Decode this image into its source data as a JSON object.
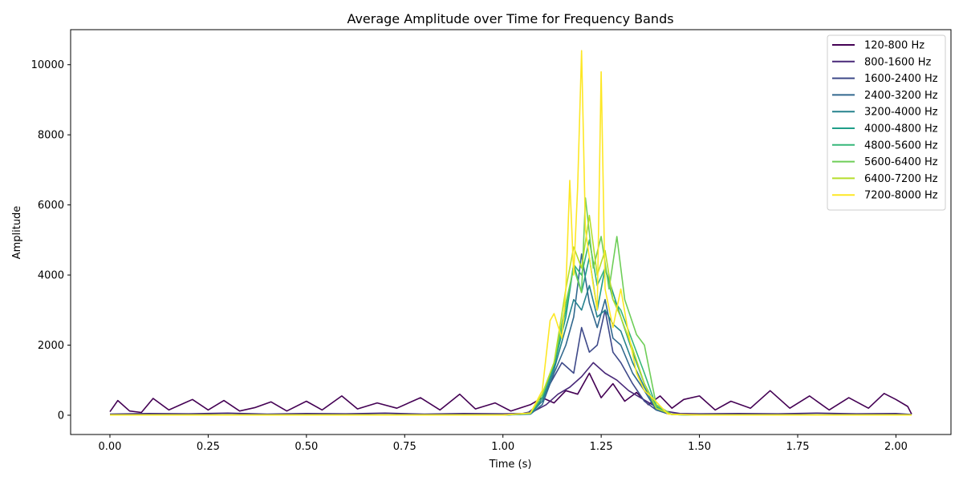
{
  "chart_data": {
    "type": "line",
    "title": "Average Amplitude over Time for Frequency Bands",
    "xlabel": "Time (s)",
    "ylabel": "Amplitude",
    "xlim": [
      -0.1,
      2.14
    ],
    "ylim": [
      -550,
      11000
    ],
    "xticks": [
      0.0,
      0.25,
      0.5,
      0.75,
      1.0,
      1.25,
      1.5,
      1.75,
      2.0
    ],
    "xtick_labels": [
      "0.00",
      "0.25",
      "0.50",
      "0.75",
      "1.00",
      "1.25",
      "1.50",
      "1.75",
      "2.00"
    ],
    "yticks": [
      0,
      2000,
      4000,
      6000,
      8000,
      10000
    ],
    "ytick_labels": [
      "0",
      "2000",
      "4000",
      "6000",
      "8000",
      "10000"
    ],
    "grid": false,
    "legend_position": "top-right",
    "series": [
      {
        "name": "120-800 Hz",
        "color": "#440154",
        "x": [
          0.0,
          0.02,
          0.05,
          0.08,
          0.11,
          0.15,
          0.19,
          0.21,
          0.25,
          0.29,
          0.33,
          0.37,
          0.41,
          0.45,
          0.5,
          0.54,
          0.59,
          0.63,
          0.68,
          0.73,
          0.79,
          0.84,
          0.89,
          0.93,
          0.98,
          1.02,
          1.07,
          1.1,
          1.13,
          1.16,
          1.19,
          1.22,
          1.25,
          1.28,
          1.31,
          1.34,
          1.37,
          1.4,
          1.43,
          1.46,
          1.5,
          1.54,
          1.58,
          1.63,
          1.68,
          1.73,
          1.78,
          1.83,
          1.88,
          1.93,
          1.97,
          2.0,
          2.03,
          2.04
        ],
        "y": [
          100,
          420,
          120,
          80,
          480,
          150,
          350,
          450,
          150,
          420,
          120,
          220,
          380,
          120,
          400,
          150,
          550,
          180,
          350,
          200,
          500,
          150,
          600,
          180,
          350,
          120,
          300,
          500,
          350,
          700,
          600,
          1200,
          500,
          900,
          400,
          650,
          300,
          550,
          200,
          450,
          550,
          150,
          400,
          200,
          700,
          200,
          550,
          150,
          500,
          200,
          620,
          450,
          250,
          30
        ]
      },
      {
        "name": "800-1600 Hz",
        "color": "#482878",
        "x": [
          0.0,
          0.1,
          0.2,
          0.3,
          0.4,
          0.5,
          0.6,
          0.7,
          0.8,
          0.9,
          1.0,
          1.05,
          1.08,
          1.11,
          1.14,
          1.17,
          1.2,
          1.23,
          1.26,
          1.29,
          1.32,
          1.35,
          1.38,
          1.41,
          1.45,
          1.5,
          1.6,
          1.7,
          1.8,
          1.9,
          2.0,
          2.04
        ],
        "y": [
          30,
          50,
          40,
          60,
          30,
          50,
          40,
          60,
          30,
          50,
          40,
          50,
          120,
          300,
          600,
          800,
          1100,
          1500,
          1200,
          1000,
          700,
          500,
          300,
          120,
          50,
          40,
          50,
          40,
          60,
          40,
          50,
          20
        ]
      },
      {
        "name": "1600-2400 Hz",
        "color": "#3e4989",
        "x": [
          0.0,
          0.2,
          0.4,
          0.6,
          0.8,
          1.0,
          1.06,
          1.09,
          1.12,
          1.15,
          1.18,
          1.2,
          1.22,
          1.24,
          1.26,
          1.28,
          1.3,
          1.33,
          1.36,
          1.39,
          1.42,
          1.5,
          1.7,
          1.9,
          2.04
        ],
        "y": [
          10,
          15,
          10,
          15,
          10,
          15,
          40,
          300,
          900,
          1500,
          1200,
          2500,
          1800,
          2000,
          3000,
          1800,
          1500,
          900,
          400,
          150,
          40,
          10,
          15,
          10,
          10
        ]
      },
      {
        "name": "2400-3200 Hz",
        "color": "#31688e",
        "x": [
          0.0,
          0.5,
          1.0,
          1.07,
          1.1,
          1.13,
          1.16,
          1.18,
          1.2,
          1.22,
          1.24,
          1.26,
          1.28,
          1.3,
          1.33,
          1.36,
          1.39,
          1.43,
          1.5,
          2.04
        ],
        "y": [
          5,
          5,
          5,
          30,
          300,
          1200,
          2000,
          2800,
          4600,
          3200,
          2500,
          3300,
          2200,
          2000,
          1200,
          700,
          150,
          20,
          5,
          5
        ]
      },
      {
        "name": "3200-4000 Hz",
        "color": "#26828e",
        "x": [
          0.0,
          0.5,
          1.0,
          1.07,
          1.1,
          1.13,
          1.16,
          1.18,
          1.2,
          1.22,
          1.24,
          1.26,
          1.28,
          1.3,
          1.33,
          1.36,
          1.39,
          1.43,
          1.5,
          2.04
        ],
        "y": [
          5,
          5,
          5,
          40,
          400,
          1300,
          2500,
          3300,
          3000,
          3700,
          2800,
          3000,
          2600,
          2400,
          1500,
          800,
          200,
          20,
          5,
          5
        ]
      },
      {
        "name": "4000-4800 Hz",
        "color": "#1f9e89",
        "x": [
          0.0,
          0.5,
          1.0,
          1.07,
          1.1,
          1.13,
          1.16,
          1.18,
          1.2,
          1.22,
          1.24,
          1.26,
          1.28,
          1.3,
          1.33,
          1.36,
          1.39,
          1.43,
          1.5,
          2.04
        ],
        "y": [
          5,
          5,
          5,
          40,
          500,
          1400,
          2800,
          4300,
          3500,
          4500,
          3000,
          4200,
          3500,
          2800,
          1800,
          900,
          250,
          20,
          5,
          5
        ]
      },
      {
        "name": "4800-5600 Hz",
        "color": "#35b779",
        "x": [
          0.0,
          0.5,
          1.0,
          1.07,
          1.1,
          1.13,
          1.16,
          1.18,
          1.2,
          1.22,
          1.24,
          1.26,
          1.28,
          1.3,
          1.33,
          1.36,
          1.39,
          1.43,
          1.5,
          2.04
        ],
        "y": [
          5,
          5,
          5,
          50,
          500,
          1500,
          3000,
          4300,
          4000,
          5000,
          3700,
          4200,
          3300,
          3000,
          2100,
          1200,
          250,
          20,
          5,
          5
        ]
      },
      {
        "name": "5600-6400 Hz",
        "color": "#6ece58",
        "x": [
          0.0,
          0.5,
          1.0,
          1.07,
          1.1,
          1.13,
          1.16,
          1.18,
          1.2,
          1.21,
          1.23,
          1.25,
          1.27,
          1.29,
          1.31,
          1.34,
          1.36,
          1.39,
          1.43,
          1.5,
          2.04
        ],
        "y": [
          5,
          5,
          5,
          60,
          600,
          1500,
          3200,
          4200,
          3500,
          6200,
          4200,
          5100,
          3600,
          5100,
          3300,
          2300,
          2000,
          300,
          20,
          5,
          5
        ]
      },
      {
        "name": "6400-7200 Hz",
        "color": "#b5de2b",
        "x": [
          0.0,
          0.5,
          1.0,
          1.07,
          1.1,
          1.13,
          1.16,
          1.18,
          1.2,
          1.22,
          1.24,
          1.26,
          1.28,
          1.3,
          1.33,
          1.36,
          1.39,
          1.43,
          1.5,
          2.04
        ],
        "y": [
          5,
          5,
          5,
          60,
          600,
          1500,
          3600,
          4800,
          4200,
          5700,
          4000,
          4700,
          3300,
          2800,
          1900,
          900,
          200,
          20,
          5,
          5
        ]
      },
      {
        "name": "7200-8000 Hz",
        "color": "#fde725",
        "x": [
          0.0,
          0.5,
          1.0,
          1.07,
          1.1,
          1.12,
          1.13,
          1.15,
          1.16,
          1.17,
          1.18,
          1.19,
          1.2,
          1.21,
          1.22,
          1.23,
          1.24,
          1.25,
          1.26,
          1.28,
          1.3,
          1.32,
          1.34,
          1.36,
          1.38,
          1.42,
          1.5,
          2.04
        ],
        "y": [
          5,
          5,
          5,
          60,
          700,
          2700,
          2900,
          2200,
          3600,
          6700,
          4000,
          6500,
          10400,
          5300,
          4500,
          3700,
          3000,
          9800,
          3600,
          2500,
          3600,
          2300,
          1200,
          700,
          500,
          30,
          5,
          5
        ]
      }
    ]
  }
}
